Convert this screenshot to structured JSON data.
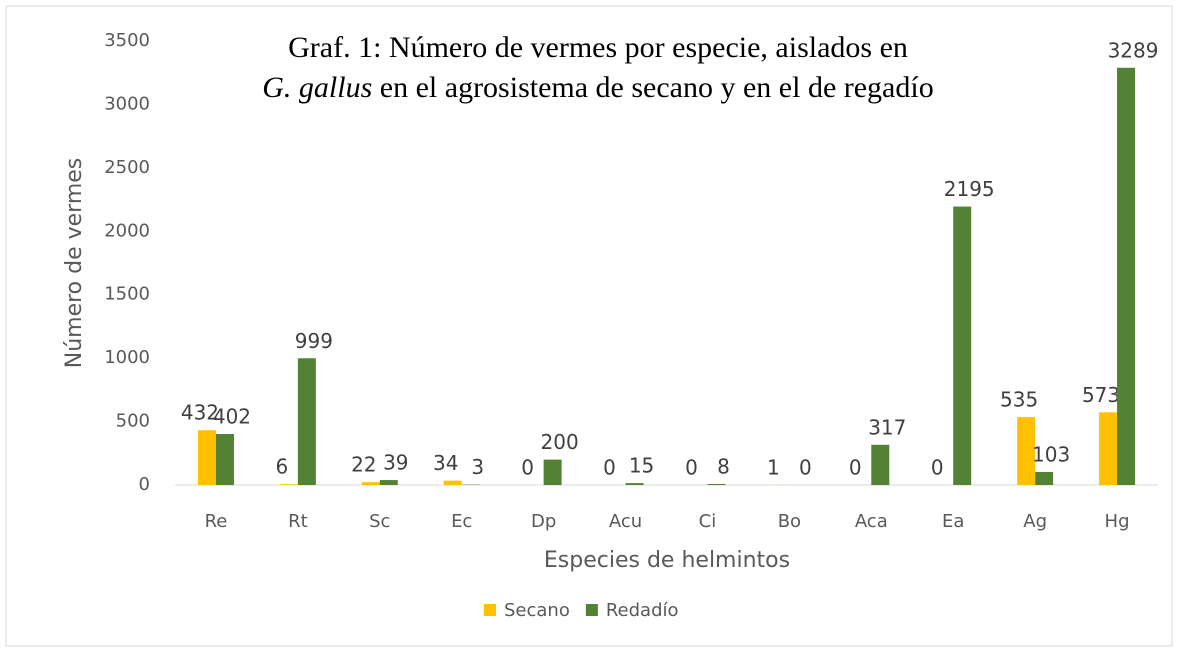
{
  "chart_data": {
    "type": "bar",
    "title": [
      "Graf. 1: Número de vermes por especie, aislados en",
      "G. gallus",
      "en el agrosistema de secano y en el de regadío"
    ],
    "x_label": "Especies de helmintos",
    "y_label": "Número de vermes",
    "categories": [
      "Re",
      "Rt",
      "Sc",
      "Ec",
      "Dp",
      "Acu",
      "Ci",
      "Bo",
      "Aca",
      "Ea",
      "Ag",
      "Hg"
    ],
    "series": [
      {
        "name": "Secano",
        "color": "#ffc000",
        "values": [
          432,
          6,
          22,
          34,
          0,
          0,
          0,
          1,
          0,
          0,
          535,
          573
        ]
      },
      {
        "name": "Redadío",
        "color": "#548235",
        "values": [
          402,
          999,
          39,
          3,
          200,
          15,
          8,
          0,
          317,
          2195,
          103,
          3289
        ]
      }
    ],
    "ylim": [
      0,
      3500
    ],
    "yticks": [
      0,
      500,
      1000,
      1500,
      2000,
      2500,
      3000,
      3500
    ],
    "grid": false,
    "legend": "bottom"
  }
}
